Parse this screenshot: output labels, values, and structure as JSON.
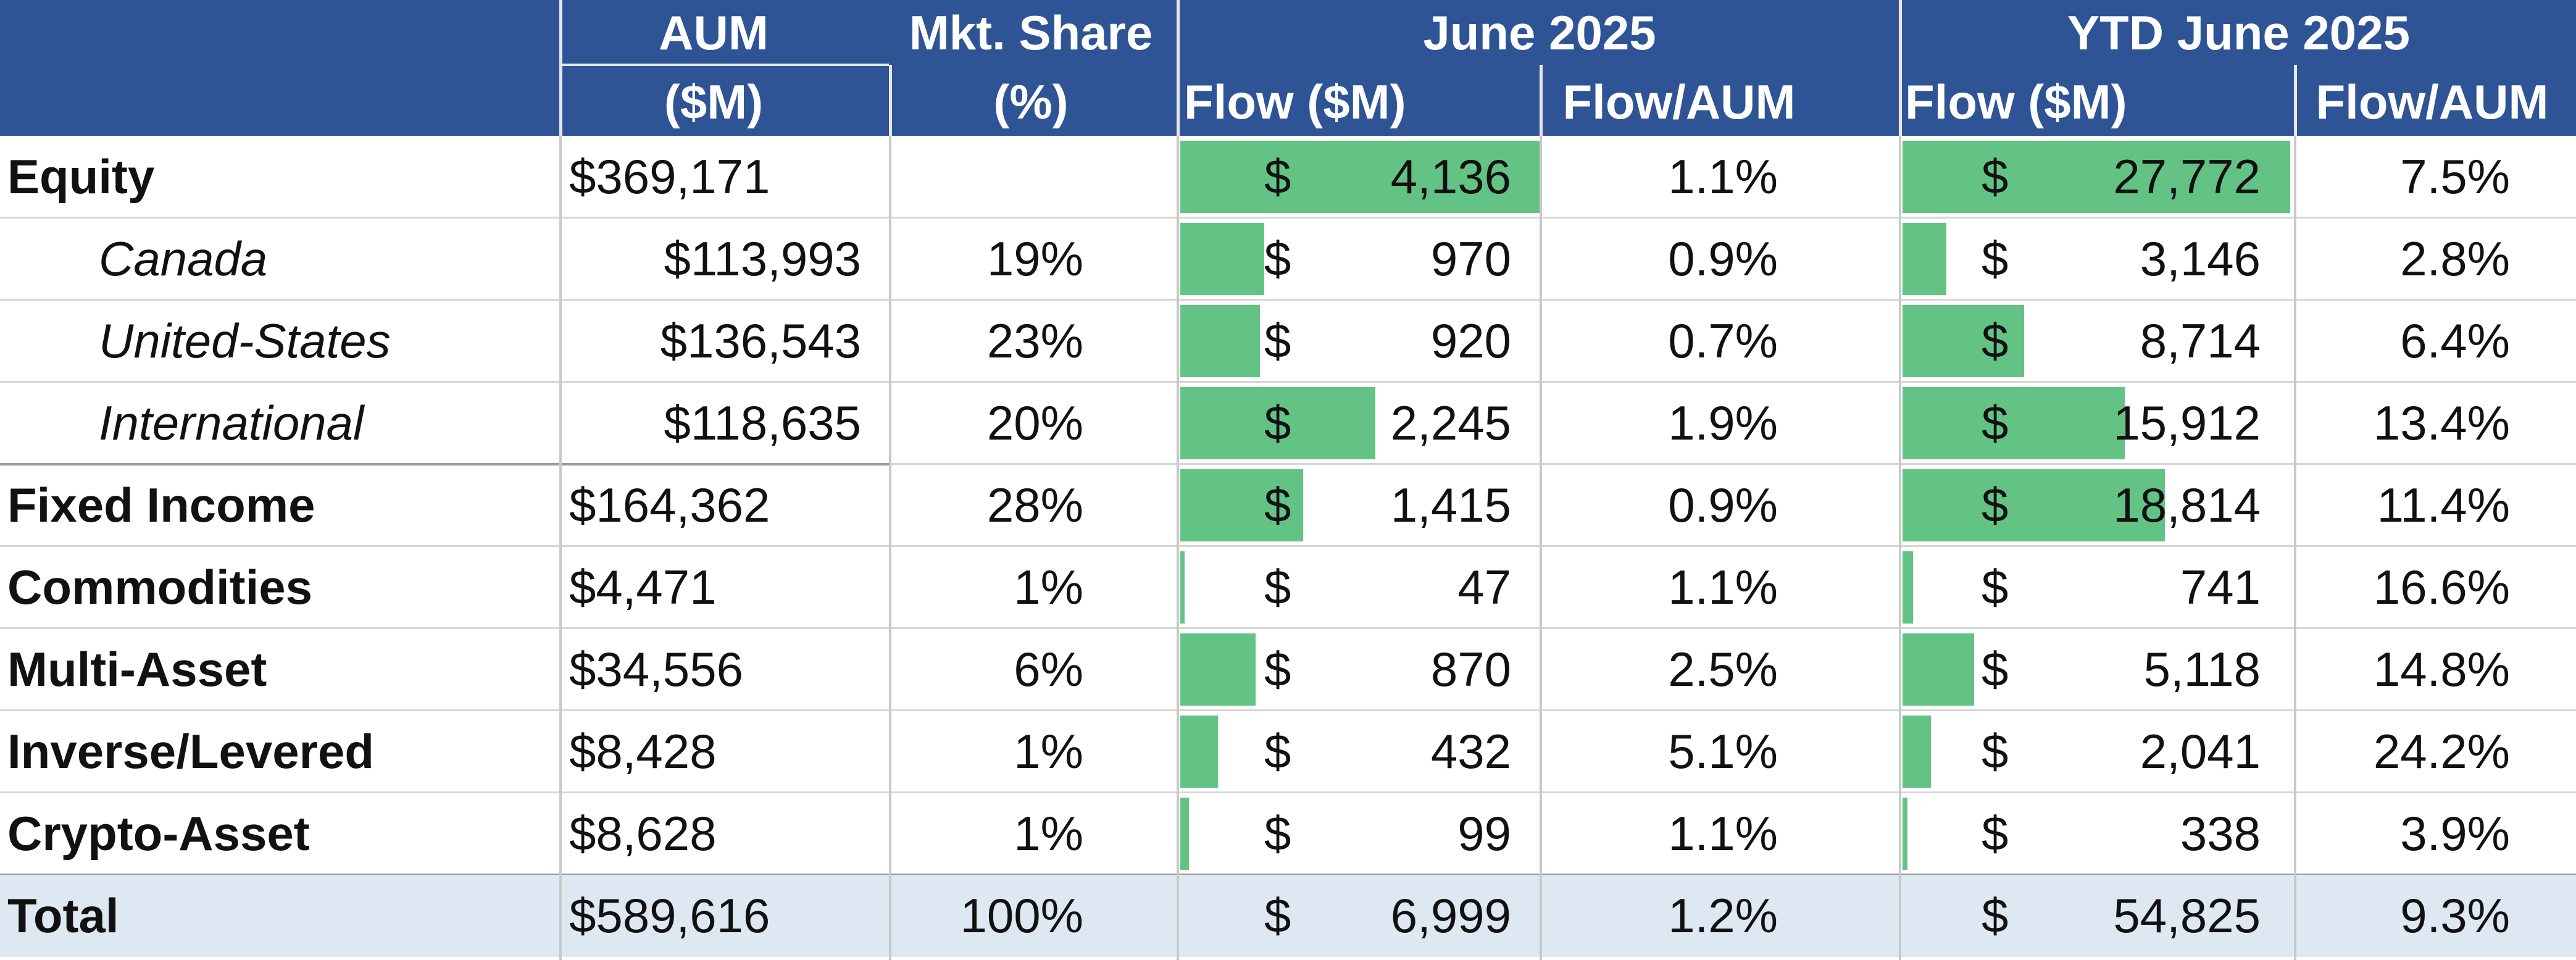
{
  "header": {
    "aum_line1": "AUM",
    "aum_line2": "($M)",
    "share_line1": "Mkt. Share",
    "share_line2": "(%)",
    "period1": "June 2025",
    "period2": "YTD June 2025",
    "flow_label": "Flow ($M)",
    "flow_aum_label": "Flow/AUM"
  },
  "colors": {
    "header_bg": "#2e5496",
    "bar": "#63c384",
    "total_bg": "#dde8f3"
  },
  "currency_symbol": "$",
  "chart_data": {
    "type": "table",
    "columns": [
      "AUM ($M)",
      "Mkt. Share (%)",
      "June 2025 Flow ($M)",
      "June 2025 Flow/AUM",
      "YTD June 2025 Flow ($M)",
      "YTD June 2025 Flow/AUM"
    ],
    "rows": [
      {
        "category": "Equity",
        "sub": false,
        "aum": "$369,171",
        "share": "",
        "june_flow": 4136,
        "june_flow_text": "4,136",
        "june_pct": "1.1%",
        "ytd_flow": 27772,
        "ytd_flow_text": "27,772",
        "ytd_pct": "7.5%"
      },
      {
        "category": "Canada",
        "sub": true,
        "aum": "$113,993",
        "share": "19%",
        "june_flow": 970,
        "june_flow_text": "970",
        "june_pct": "0.9%",
        "ytd_flow": 3146,
        "ytd_flow_text": "3,146",
        "ytd_pct": "2.8%"
      },
      {
        "category": "United-States",
        "sub": true,
        "aum": "$136,543",
        "share": "23%",
        "june_flow": 920,
        "june_flow_text": "920",
        "june_pct": "0.7%",
        "ytd_flow": 8714,
        "ytd_flow_text": "8,714",
        "ytd_pct": "6.4%"
      },
      {
        "category": "International",
        "sub": true,
        "aum": "$118,635",
        "share": "20%",
        "june_flow": 2245,
        "june_flow_text": "2,245",
        "june_pct": "1.9%",
        "ytd_flow": 15912,
        "ytd_flow_text": "15,912",
        "ytd_pct": "13.4%"
      },
      {
        "category": "Fixed Income",
        "sub": false,
        "aum": "$164,362",
        "share": "28%",
        "june_flow": 1415,
        "june_flow_text": "1,415",
        "june_pct": "0.9%",
        "ytd_flow": 18814,
        "ytd_flow_text": "18,814",
        "ytd_pct": "11.4%"
      },
      {
        "category": "Commodities",
        "sub": false,
        "aum": "$4,471",
        "share": "1%",
        "june_flow": 47,
        "june_flow_text": "47",
        "june_pct": "1.1%",
        "ytd_flow": 741,
        "ytd_flow_text": "741",
        "ytd_pct": "16.6%"
      },
      {
        "category": "Multi-Asset",
        "sub": false,
        "aum": "$34,556",
        "share": "6%",
        "june_flow": 870,
        "june_flow_text": "870",
        "june_pct": "2.5%",
        "ytd_flow": 5118,
        "ytd_flow_text": "5,118",
        "ytd_pct": "14.8%"
      },
      {
        "category": "Inverse/Levered",
        "sub": false,
        "aum": "$8,428",
        "share": "1%",
        "june_flow": 432,
        "june_flow_text": "432",
        "june_pct": "5.1%",
        "ytd_flow": 2041,
        "ytd_flow_text": "2,041",
        "ytd_pct": "24.2%"
      },
      {
        "category": "Crypto-Asset",
        "sub": false,
        "aum": "$8,628",
        "share": "1%",
        "june_flow": 99,
        "june_flow_text": "99",
        "june_pct": "1.1%",
        "ytd_flow": 338,
        "ytd_flow_text": "338",
        "ytd_pct": "3.9%"
      }
    ],
    "total": {
      "category": "Total",
      "aum": "$589,616",
      "share": "100%",
      "june_flow_text": "6,999",
      "june_pct": "1.2%",
      "ytd_flow_text": "54,825",
      "ytd_pct": "9.3%"
    }
  }
}
